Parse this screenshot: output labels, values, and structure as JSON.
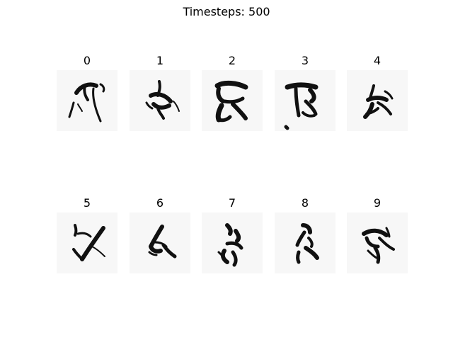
{
  "figure": {
    "title": "Timesteps: 500"
  },
  "panels": [
    {
      "label": "0"
    },
    {
      "label": "1"
    },
    {
      "label": "2"
    },
    {
      "label": "3"
    },
    {
      "label": "4"
    },
    {
      "label": "5"
    },
    {
      "label": "6"
    },
    {
      "label": "7"
    },
    {
      "label": "8"
    },
    {
      "label": "9"
    }
  ]
}
